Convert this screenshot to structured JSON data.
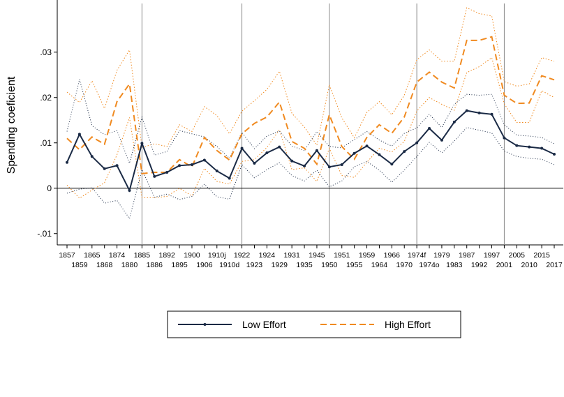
{
  "chart_data": {
    "type": "line",
    "title": "",
    "xlabel": "",
    "ylabel": "Spending coeficient",
    "ylim": [
      -0.0125,
      0.0415
    ],
    "yticks": [
      -0.01,
      0,
      0.01,
      0.02,
      0.03
    ],
    "ytick_labels": [
      "-.01",
      "0",
      ".01",
      ".02",
      ".03"
    ],
    "categories": [
      "1857",
      "1859",
      "1865",
      "1868",
      "1874",
      "1880",
      "1885",
      "1886",
      "1892",
      "1895",
      "1900",
      "1906",
      "1910j",
      "1910d",
      "1922",
      "1923",
      "1924",
      "1929",
      "1931",
      "1935",
      "1945",
      "1950",
      "1951",
      "1955",
      "1959",
      "1964",
      "1966",
      "1970",
      "1974f",
      "1974o",
      "1979",
      "1983",
      "1987",
      "1992",
      "1997",
      "2001",
      "2005",
      "2010",
      "2015",
      "2017"
    ],
    "vertical_lines_at": [
      "1885",
      "1922",
      "1950",
      "1974f",
      "2001"
    ],
    "horizontal_line_at": 0,
    "legend_position": "bottom",
    "colors": {
      "low": "#1a2a45",
      "high": "#f08a20",
      "low_ci": "#1a2a45",
      "high_ci": "#f08a20",
      "reference": "#888888"
    },
    "series": [
      {
        "name": "Low Effort",
        "style": "solid with markers",
        "values": [
          0.0057,
          0.0119,
          0.007,
          0.0043,
          0.005,
          -0.0005,
          0.0099,
          0.0026,
          0.0035,
          0.005,
          0.0052,
          0.0062,
          0.0038,
          0.0022,
          0.0088,
          0.0055,
          0.0078,
          0.0091,
          0.006,
          0.0049,
          0.0083,
          0.0047,
          0.0052,
          0.0077,
          0.0093,
          0.0074,
          0.0053,
          0.0081,
          0.01,
          0.0132,
          0.0106,
          0.0146,
          0.0171,
          0.0166,
          0.0163,
          0.0111,
          0.0094,
          0.0091,
          0.0088,
          0.0075
        ],
        "ci_low": [
          -0.0011,
          -0.0002,
          0.0001,
          -0.0033,
          -0.0027,
          -0.0067,
          0.0041,
          -0.002,
          -0.0013,
          -0.0025,
          -0.0018,
          0.0009,
          -0.0019,
          -0.0024,
          0.0052,
          0.0023,
          0.0041,
          0.0056,
          0.0028,
          0.0016,
          0.004,
          0.0003,
          0.0016,
          0.0047,
          0.0059,
          0.004,
          0.0013,
          0.004,
          0.007,
          0.0101,
          0.0078,
          0.0104,
          0.0134,
          0.0128,
          0.0122,
          0.0082,
          0.007,
          0.0066,
          0.0064,
          0.0052
        ],
        "ci_high": [
          0.0125,
          0.024,
          0.0138,
          0.0118,
          0.0127,
          0.0055,
          0.0157,
          0.0073,
          0.0081,
          0.0127,
          0.012,
          0.0113,
          0.0092,
          0.0066,
          0.0123,
          0.0087,
          0.0115,
          0.0126,
          0.0093,
          0.0083,
          0.0125,
          0.0092,
          0.0089,
          0.0107,
          0.0125,
          0.0106,
          0.0093,
          0.0121,
          0.0133,
          0.0163,
          0.0134,
          0.0185,
          0.0207,
          0.0205,
          0.0207,
          0.014,
          0.0117,
          0.0115,
          0.0112,
          0.0098
        ]
      },
      {
        "name": "High Effort",
        "style": "dashed",
        "values": [
          0.011,
          0.0085,
          0.0113,
          0.0097,
          0.0191,
          0.023,
          0.0032,
          0.0035,
          0.0035,
          0.0063,
          0.0047,
          0.0112,
          0.0083,
          0.0062,
          0.012,
          0.0143,
          0.0157,
          0.019,
          0.0103,
          0.0088,
          0.0053,
          0.0162,
          0.0092,
          0.0064,
          0.0112,
          0.014,
          0.0121,
          0.0157,
          0.0234,
          0.0256,
          0.0234,
          0.0221,
          0.0326,
          0.0326,
          0.0334,
          0.0205,
          0.0187,
          0.0188,
          0.0248,
          0.0239
        ],
        "ci_low": [
          0.0007,
          -0.0022,
          -0.0004,
          0.0012,
          0.0074,
          0.0156,
          -0.0021,
          -0.0021,
          -0.0018,
          0.0,
          -0.0017,
          0.0044,
          0.0015,
          0.0009,
          0.0059,
          0.0063,
          0.009,
          0.0129,
          0.0041,
          0.0045,
          0.0015,
          0.0088,
          0.0028,
          0.0024,
          0.0057,
          0.0088,
          0.008,
          0.0103,
          0.017,
          0.02,
          0.0185,
          0.0172,
          0.0255,
          0.0268,
          0.0288,
          0.0186,
          0.0145,
          0.0145,
          0.0215,
          0.02
        ],
        "ci_high": [
          0.0212,
          0.0189,
          0.0237,
          0.0176,
          0.026,
          0.0305,
          0.009,
          0.0098,
          0.0092,
          0.014,
          0.0125,
          0.018,
          0.016,
          0.012,
          0.017,
          0.0193,
          0.0218,
          0.0258,
          0.0165,
          0.0135,
          0.0095,
          0.0228,
          0.0155,
          0.0111,
          0.0167,
          0.0191,
          0.0162,
          0.0205,
          0.0283,
          0.0305,
          0.028,
          0.028,
          0.0398,
          0.0385,
          0.038,
          0.0235,
          0.0225,
          0.023,
          0.0288,
          0.028
        ]
      }
    ]
  }
}
